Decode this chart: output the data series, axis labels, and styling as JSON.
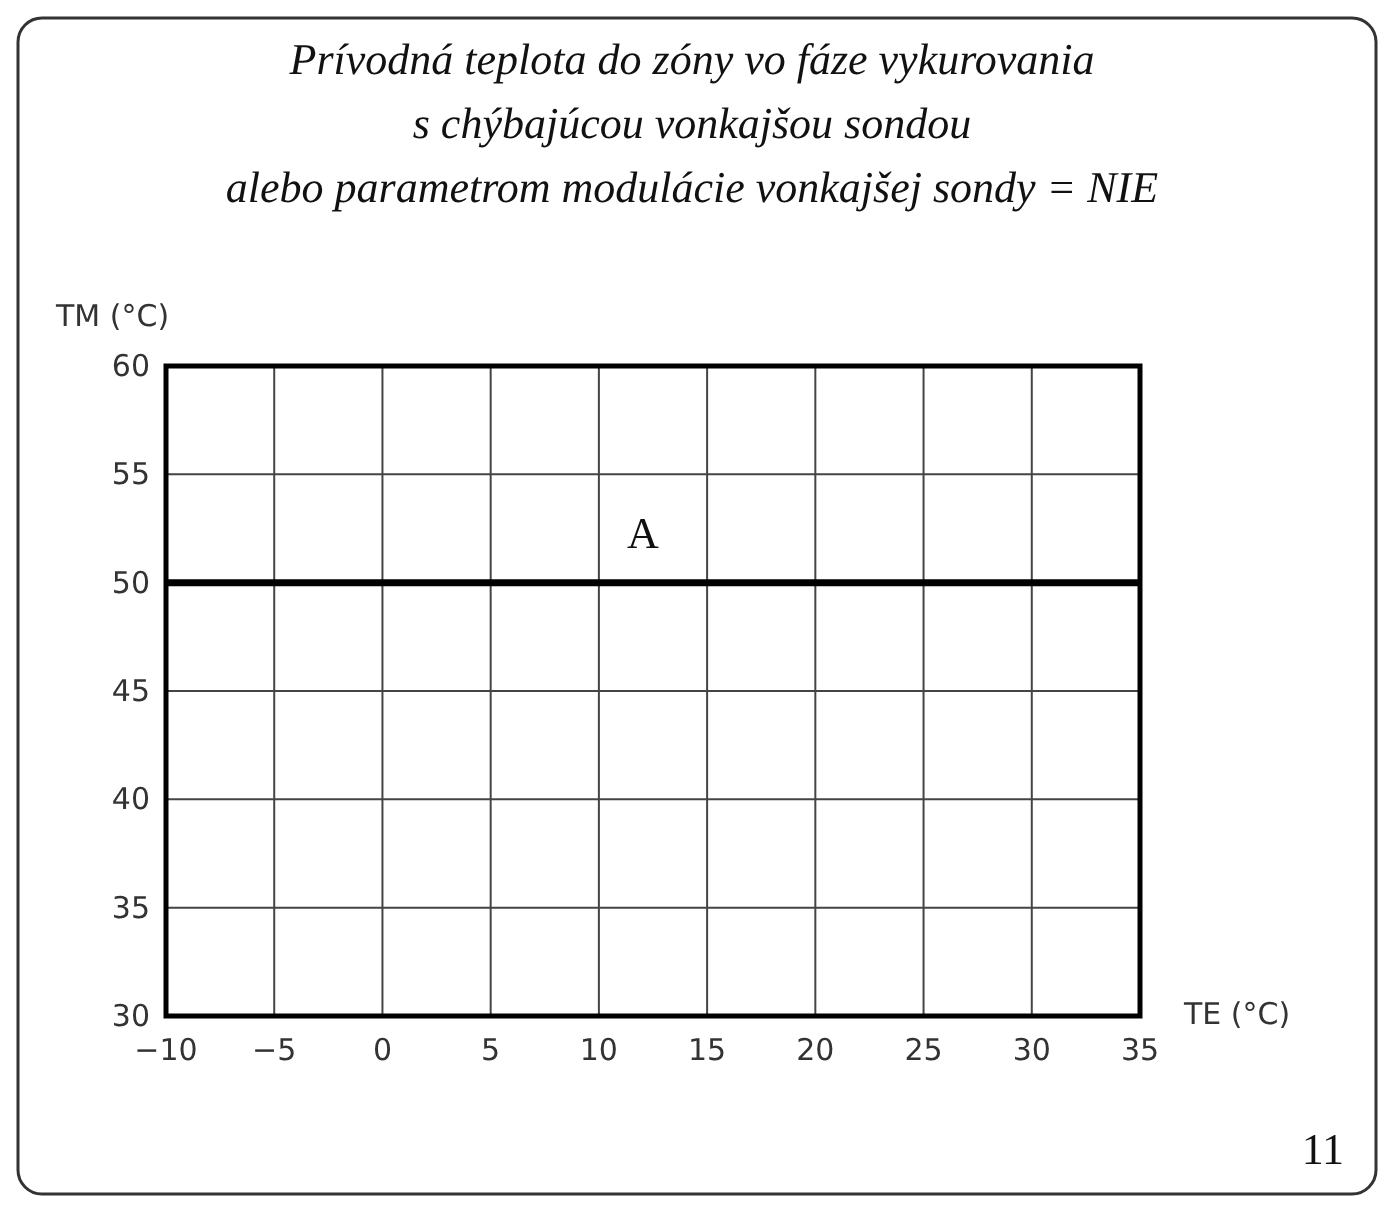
{
  "chart_data": {
    "type": "line",
    "title": "Prívodná teplota do zóny vo fáze vykurovania\ns chýbajúcou vonkajšou sondou\nalebo parametrom modulácie vonkajšej sondy = NIE",
    "xlabel": "TE (°C)",
    "ylabel": "TM (°C)",
    "x": [
      -10,
      35
    ],
    "series": [
      {
        "color": "#000000",
        "values": [
          50,
          50
        ]
      }
    ],
    "xlim": [
      -10,
      35
    ],
    "xticks": [
      -10,
      -5,
      0,
      5,
      10,
      15,
      20,
      25,
      30,
      35
    ],
    "ylim": [
      30,
      60
    ],
    "yticks": [
      30,
      35,
      40,
      45,
      50,
      55,
      60
    ],
    "grid": true,
    "marker": "none",
    "line_style": "solid",
    "annotations": [
      "A",
      "11"
    ]
  }
}
